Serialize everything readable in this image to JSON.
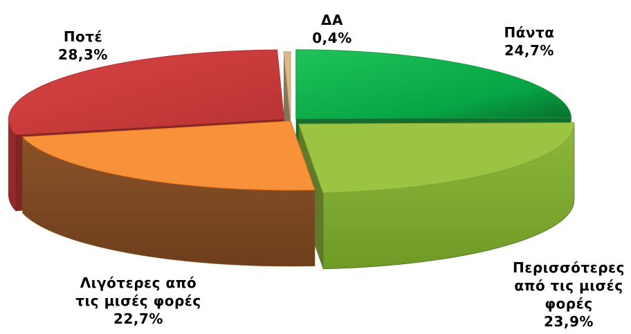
{
  "chart_data": {
    "type": "pie",
    "style": "3d-exploded",
    "title": "",
    "legend": "none",
    "slices": [
      {
        "name": "Πάντα",
        "label_lines": [
          "Πάντα"
        ],
        "value": 24.7,
        "value_label": "24,7%",
        "color": "#21b04b"
      },
      {
        "name": "Περισσότερες από τις μισές φορές",
        "label_lines": [
          "Περισσότερες",
          "από τις μισές",
          "φορές"
        ],
        "value": 23.9,
        "value_label": "23,9%",
        "color": "#9ac441"
      },
      {
        "name": "Λιγότερες από τις μισές φορές",
        "label_lines": [
          "Λιγότερες από",
          "τις μισές φορές"
        ],
        "value": 22.7,
        "value_label": "22,7%",
        "color": "#f7923a"
      },
      {
        "name": "Ποτέ",
        "label_lines": [
          "Ποτέ"
        ],
        "value": 28.3,
        "value_label": "28,3%",
        "color": "#cc3b3b"
      },
      {
        "name": "ΔΑ",
        "label_lines": [
          "ΔΑ"
        ],
        "value": 0.4,
        "value_label": "0,4%",
        "color": "#d9b98a"
      }
    ]
  }
}
